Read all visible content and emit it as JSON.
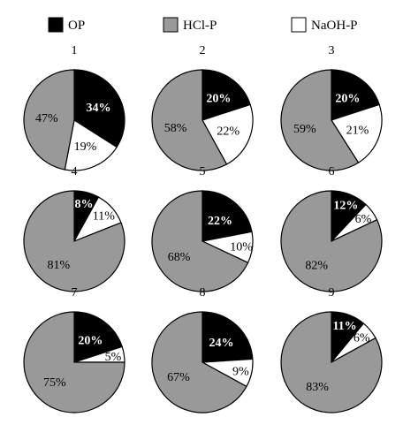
{
  "chart_data": {
    "type": "pie",
    "legend": {
      "position": "top",
      "entries": [
        {
          "name": "OP",
          "color": "#000000"
        },
        {
          "name": "HCl-P",
          "color": "#999999"
        },
        {
          "name": "NaOH-P",
          "color": "#ffffff"
        }
      ]
    },
    "panels": [
      {
        "label": "1",
        "slices": [
          {
            "name": "OP",
            "value": 34,
            "text": "34%"
          },
          {
            "name": "NaOH-P",
            "value": 19,
            "text": "19%"
          },
          {
            "name": "HCl-P",
            "value": 47,
            "text": "47%"
          }
        ]
      },
      {
        "label": "2",
        "slices": [
          {
            "name": "OP",
            "value": 20,
            "text": "20%"
          },
          {
            "name": "NaOH-P",
            "value": 22,
            "text": "22%"
          },
          {
            "name": "HCl-P",
            "value": 58,
            "text": "58%"
          }
        ]
      },
      {
        "label": "3",
        "slices": [
          {
            "name": "OP",
            "value": 20,
            "text": "20%"
          },
          {
            "name": "NaOH-P",
            "value": 21,
            "text": "21%"
          },
          {
            "name": "HCl-P",
            "value": 59,
            "text": "59%"
          }
        ]
      },
      {
        "label": "4",
        "slices": [
          {
            "name": "OP",
            "value": 8,
            "text": "8%"
          },
          {
            "name": "NaOH-P",
            "value": 11,
            "text": "11%"
          },
          {
            "name": "HCl-P",
            "value": 81,
            "text": "81%"
          }
        ]
      },
      {
        "label": "5",
        "slices": [
          {
            "name": "OP",
            "value": 22,
            "text": "22%"
          },
          {
            "name": "NaOH-P",
            "value": 10,
            "text": "10%"
          },
          {
            "name": "HCl-P",
            "value": 68,
            "text": "68%"
          }
        ]
      },
      {
        "label": "6",
        "slices": [
          {
            "name": "OP",
            "value": 12,
            "text": "12%"
          },
          {
            "name": "NaOH-P",
            "value": 6,
            "text": "6%"
          },
          {
            "name": "HCl-P",
            "value": 82,
            "text": "82%"
          }
        ]
      },
      {
        "label": "7",
        "slices": [
          {
            "name": "OP",
            "value": 20,
            "text": "20%"
          },
          {
            "name": "NaOH-P",
            "value": 5,
            "text": "5%"
          },
          {
            "name": "HCl-P",
            "value": 75,
            "text": "75%"
          }
        ]
      },
      {
        "label": "8",
        "slices": [
          {
            "name": "OP",
            "value": 24,
            "text": "24%"
          },
          {
            "name": "NaOH-P",
            "value": 9,
            "text": "9%"
          },
          {
            "name": "HCl-P",
            "value": 67,
            "text": "67%"
          }
        ]
      },
      {
        "label": "9",
        "slices": [
          {
            "name": "OP",
            "value": 11,
            "text": "11%"
          },
          {
            "name": "NaOH-P",
            "value": 6,
            "text": "6%"
          },
          {
            "name": "HCl-P",
            "value": 83,
            "text": "83%"
          }
        ]
      }
    ]
  }
}
